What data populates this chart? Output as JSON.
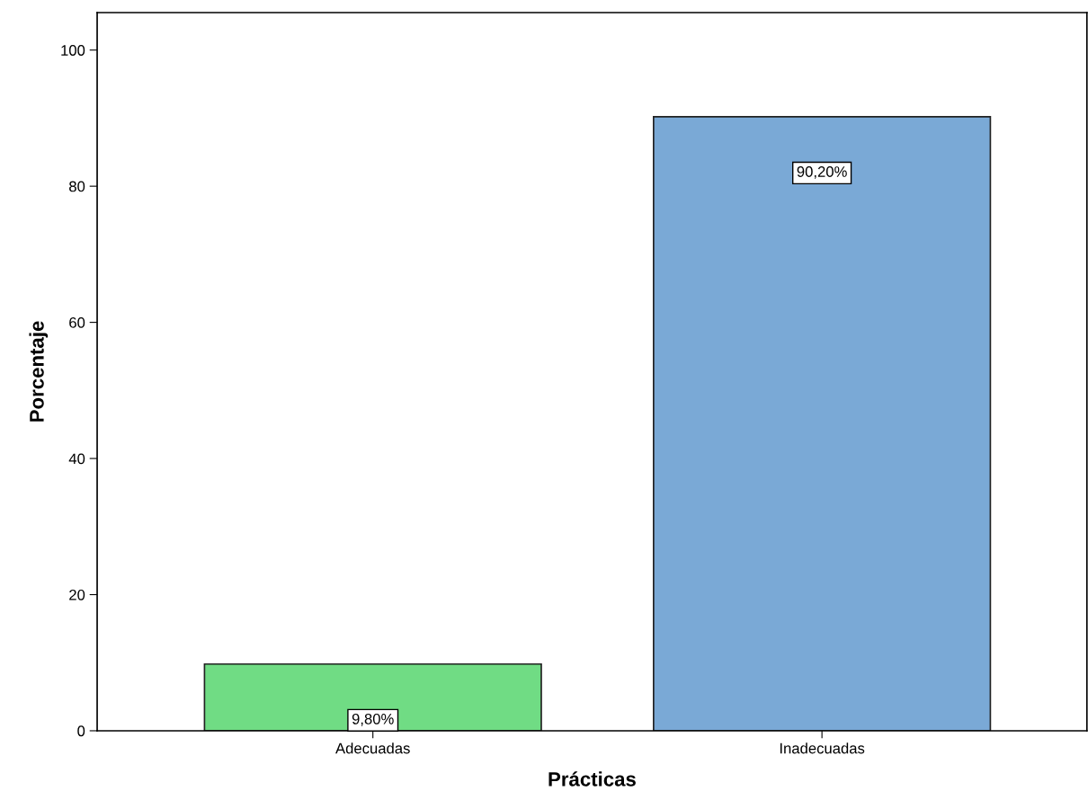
{
  "chart_data": {
    "type": "bar",
    "xlabel": "Prácticas",
    "ylabel": "Porcentaje",
    "categories": [
      "Adecuadas",
      "Inadecuadas"
    ],
    "values": [
      9.8,
      90.2
    ],
    "colors": [
      "#70dc84",
      "#7aa9d6"
    ],
    "value_labels": [
      "9,80%",
      "90,20%"
    ],
    "ylim": [
      0,
      105.5
    ],
    "yticks": [
      0,
      20,
      40,
      60,
      80,
      100
    ],
    "grid": false,
    "legend": false
  }
}
